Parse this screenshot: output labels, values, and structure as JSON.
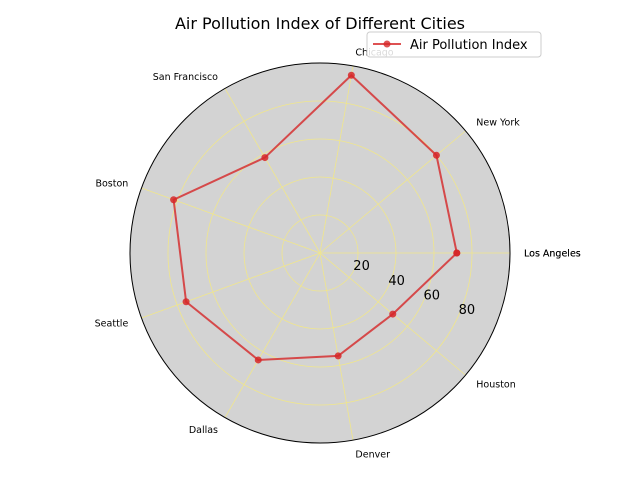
{
  "chart_data": {
    "type": "radar",
    "title": "Air Pollution Index of Different Cities",
    "categories": [
      "Los Angeles",
      "New York",
      "Chicago",
      "San Francisco",
      "Boston",
      "Seattle",
      "Dallas",
      "Denver",
      "Houston",
      "Los Angeles"
    ],
    "series": [
      {
        "name": "Air Pollution Index",
        "values": [
          72,
          80,
          95,
          58,
          82,
          75,
          65,
          55,
          50,
          72
        ],
        "color": "#d62728"
      }
    ],
    "radial_ticks": [
      "20",
      "40",
      "60",
      "80"
    ],
    "rlim": [
      0,
      100
    ],
    "grid": true,
    "grid_color": "#f0e68c",
    "background": "#d3d3d3",
    "legend_position": "top-right"
  }
}
